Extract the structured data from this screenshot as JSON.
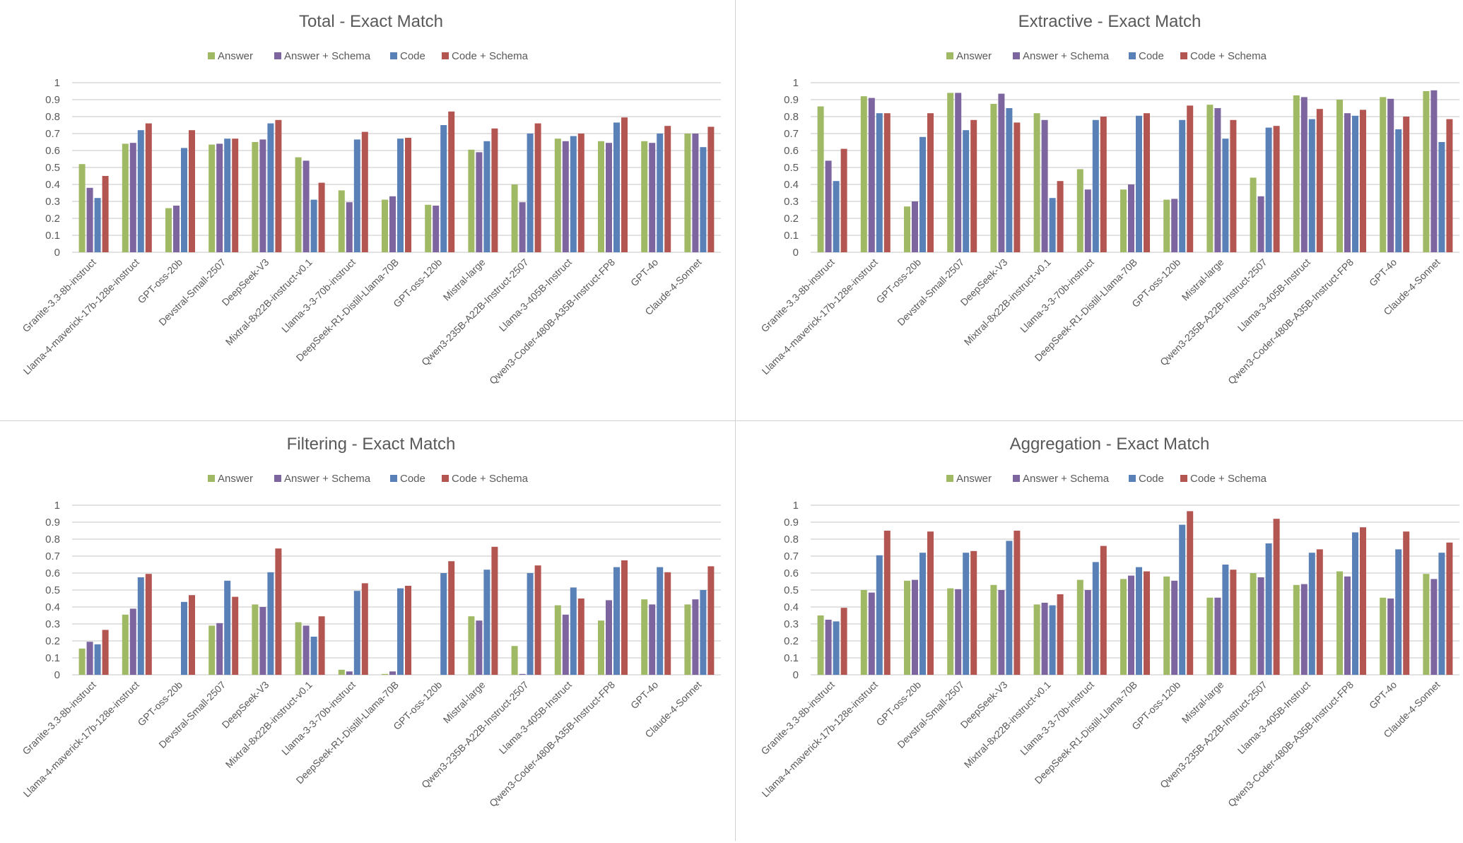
{
  "colors": {
    "Answer": "#a0b964",
    "Answer + Schema": "#7d66a0",
    "Code": "#5a80b8",
    "Code + Schema": "#b35651",
    "grid": "#d9d9d9",
    "text": "#595959"
  },
  "chart_data": [
    {
      "type": "bar",
      "title": "Total - Exact Match",
      "legend_position": "top",
      "ylim": [
        0,
        1
      ],
      "yticks": [
        "0",
        "0.1",
        "0.2",
        "0.3",
        "0.4",
        "0.5",
        "0.6",
        "0.7",
        "0.8",
        "0.9",
        "1"
      ],
      "categories": [
        "Granite-3.3-8b-instruct",
        "Llama-4-maverick-17b-128e-instruct",
        "GPT-oss-20b",
        "Devstral-Small-2507",
        "DeepSeek-V3",
        "Mixtral-8x22B-instruct-v0.1",
        "Llama-3-3-70b-instruct",
        "DeepSeek-R1-Distill-Llama-70B",
        "GPT-oss-120b",
        "Mistral-large",
        "Qwen3-235B-A22B-Instruct-2507",
        "Llama-3-405B-Instruct",
        "Qwen3-Coder-480B-A35B-Instruct-FP8",
        "GPT-4o",
        "Claude-4-Sonnet"
      ],
      "series": [
        {
          "name": "Answer",
          "values": [
            0.52,
            0.64,
            0.26,
            0.635,
            0.65,
            0.56,
            0.365,
            0.31,
            0.28,
            0.605,
            0.4,
            0.67,
            0.655,
            0.655,
            0.7
          ]
        },
        {
          "name": "Answer + Schema",
          "values": [
            0.38,
            0.645,
            0.275,
            0.64,
            0.665,
            0.54,
            0.295,
            0.33,
            0.275,
            0.59,
            0.295,
            0.655,
            0.645,
            0.645,
            0.7
          ]
        },
        {
          "name": "Code",
          "values": [
            0.32,
            0.72,
            0.615,
            0.67,
            0.76,
            0.31,
            0.665,
            0.67,
            0.75,
            0.655,
            0.7,
            0.685,
            0.765,
            0.7,
            0.62
          ]
        },
        {
          "name": "Code + Schema",
          "values": [
            0.45,
            0.76,
            0.72,
            0.67,
            0.78,
            0.41,
            0.71,
            0.675,
            0.83,
            0.73,
            0.76,
            0.7,
            0.795,
            0.745,
            0.74
          ]
        }
      ]
    },
    {
      "type": "bar",
      "title": "Extractive - Exact Match",
      "legend_position": "top",
      "ylim": [
        0,
        1
      ],
      "yticks": [
        "0",
        "0.1",
        "0.2",
        "0.3",
        "0.4",
        "0.5",
        "0.6",
        "0.7",
        "0.8",
        "0.9",
        "1"
      ],
      "categories": [
        "Granite-3.3-8b-instruct",
        "Llama-4-maverick-17b-128e-instruct",
        "GPT-oss-20b",
        "Devstral-Small-2507",
        "DeepSeek-V3",
        "Mixtral-8x22B-instruct-v0.1",
        "Llama-3-3-70b-instruct",
        "DeepSeek-R1-Distill-Llama-70B",
        "GPT-oss-120b",
        "Mistral-large",
        "Qwen3-235B-A22B-Instruct-2507",
        "Llama-3-405B-Instruct",
        "Qwen3-Coder-480B-A35B-Instruct-FP8",
        "GPT-4o",
        "Claude-4-Sonnet"
      ],
      "series": [
        {
          "name": "Answer",
          "values": [
            0.86,
            0.92,
            0.27,
            0.94,
            0.875,
            0.82,
            0.49,
            0.37,
            0.31,
            0.87,
            0.44,
            0.925,
            0.9,
            0.915,
            0.95
          ]
        },
        {
          "name": "Answer + Schema",
          "values": [
            0.54,
            0.91,
            0.3,
            0.94,
            0.935,
            0.78,
            0.37,
            0.4,
            0.315,
            0.85,
            0.33,
            0.915,
            0.82,
            0.905,
            0.955
          ]
        },
        {
          "name": "Code",
          "values": [
            0.42,
            0.82,
            0.68,
            0.72,
            0.85,
            0.32,
            0.78,
            0.805,
            0.78,
            0.67,
            0.735,
            0.785,
            0.805,
            0.725,
            0.65
          ]
        },
        {
          "name": "Code + Schema",
          "values": [
            0.61,
            0.82,
            0.82,
            0.78,
            0.765,
            0.42,
            0.8,
            0.82,
            0.865,
            0.78,
            0.745,
            0.845,
            0.84,
            0.8,
            0.785
          ]
        }
      ]
    },
    {
      "type": "bar",
      "title": "Filtering - Exact Match",
      "legend_position": "top",
      "ylim": [
        0,
        1
      ],
      "yticks": [
        "0",
        "0.1",
        "0.2",
        "0.3",
        "0.4",
        "0.5",
        "0.6",
        "0.7",
        "0.8",
        "0.9",
        "1"
      ],
      "categories": [
        "Granite-3.3-8b-instruct",
        "Llama-4-maverick-17b-128e-instruct",
        "GPT-oss-20b",
        "Devstral-Small-2507",
        "DeepSeek-V3",
        "Mixtral-8x22B-instruct-v0.1",
        "Llama-3-3-70b-instruct",
        "DeepSeek-R1-Distill-Llama-70B",
        "GPT-oss-120b",
        "Mistral-large",
        "Qwen3-235B-A22B-Instruct-2507",
        "Llama-3-405B-Instruct",
        "Qwen3-Coder-480B-A35B-Instruct-FP8",
        "GPT-4o",
        "Claude-4-Sonnet"
      ],
      "series": [
        {
          "name": "Answer",
          "values": [
            0.155,
            0.355,
            0,
            0.29,
            0.415,
            0.31,
            0.03,
            0.005,
            0,
            0.345,
            0.17,
            0.41,
            0.32,
            0.445,
            0.415
          ]
        },
        {
          "name": "Answer + Schema",
          "values": [
            0.195,
            0.39,
            0,
            0.305,
            0.4,
            0.29,
            0.02,
            0.02,
            0,
            0.32,
            0.005,
            0.355,
            0.44,
            0.415,
            0.445
          ]
        },
        {
          "name": "Code",
          "values": [
            0.18,
            0.575,
            0.43,
            0.555,
            0.605,
            0.225,
            0.495,
            0.51,
            0.6,
            0.62,
            0.6,
            0.515,
            0.635,
            0.635,
            0.5
          ]
        },
        {
          "name": "Code + Schema",
          "values": [
            0.265,
            0.595,
            0.47,
            0.46,
            0.745,
            0.345,
            0.54,
            0.525,
            0.67,
            0.755,
            0.645,
            0.45,
            0.675,
            0.605,
            0.64
          ]
        }
      ]
    },
    {
      "type": "bar",
      "title": "Aggregation - Exact Match",
      "legend_position": "top",
      "ylim": [
        0,
        1
      ],
      "yticks": [
        "0",
        "0.1",
        "0.2",
        "0.3",
        "0.4",
        "0.5",
        "0.6",
        "0.7",
        "0.8",
        "0.9",
        "1"
      ],
      "categories": [
        "Granite-3.3-8b-instruct",
        "Llama-4-maverick-17b-128e-instruct",
        "GPT-oss-20b",
        "Devstral-Small-2507",
        "DeepSeek-V3",
        "Mixtral-8x22B-instruct-v0.1",
        "Llama-3-3-70b-instruct",
        "DeepSeek-R1-Distill-Llama-70B",
        "GPT-oss-120b",
        "Mistral-large",
        "Qwen3-235B-A22B-Instruct-2507",
        "Llama-3-405B-Instruct",
        "Qwen3-Coder-480B-A35B-Instruct-FP8",
        "GPT-4o",
        "Claude-4-Sonnet"
      ],
      "series": [
        {
          "name": "Answer",
          "values": [
            0.35,
            0.5,
            0.555,
            0.51,
            0.53,
            0.415,
            0.56,
            0.565,
            0.58,
            0.455,
            0.6,
            0.53,
            0.61,
            0.455,
            0.595
          ]
        },
        {
          "name": "Answer + Schema",
          "values": [
            0.325,
            0.485,
            0.56,
            0.505,
            0.5,
            0.425,
            0.5,
            0.585,
            0.555,
            0.455,
            0.575,
            0.535,
            0.58,
            0.45,
            0.565
          ]
        },
        {
          "name": "Code",
          "values": [
            0.315,
            0.705,
            0.72,
            0.72,
            0.79,
            0.41,
            0.665,
            0.635,
            0.885,
            0.65,
            0.775,
            0.72,
            0.84,
            0.74,
            0.72
          ]
        },
        {
          "name": "Code + Schema",
          "values": [
            0.395,
            0.85,
            0.845,
            0.73,
            0.85,
            0.475,
            0.76,
            0.61,
            0.965,
            0.62,
            0.92,
            0.74,
            0.87,
            0.845,
            0.78
          ]
        }
      ]
    }
  ]
}
